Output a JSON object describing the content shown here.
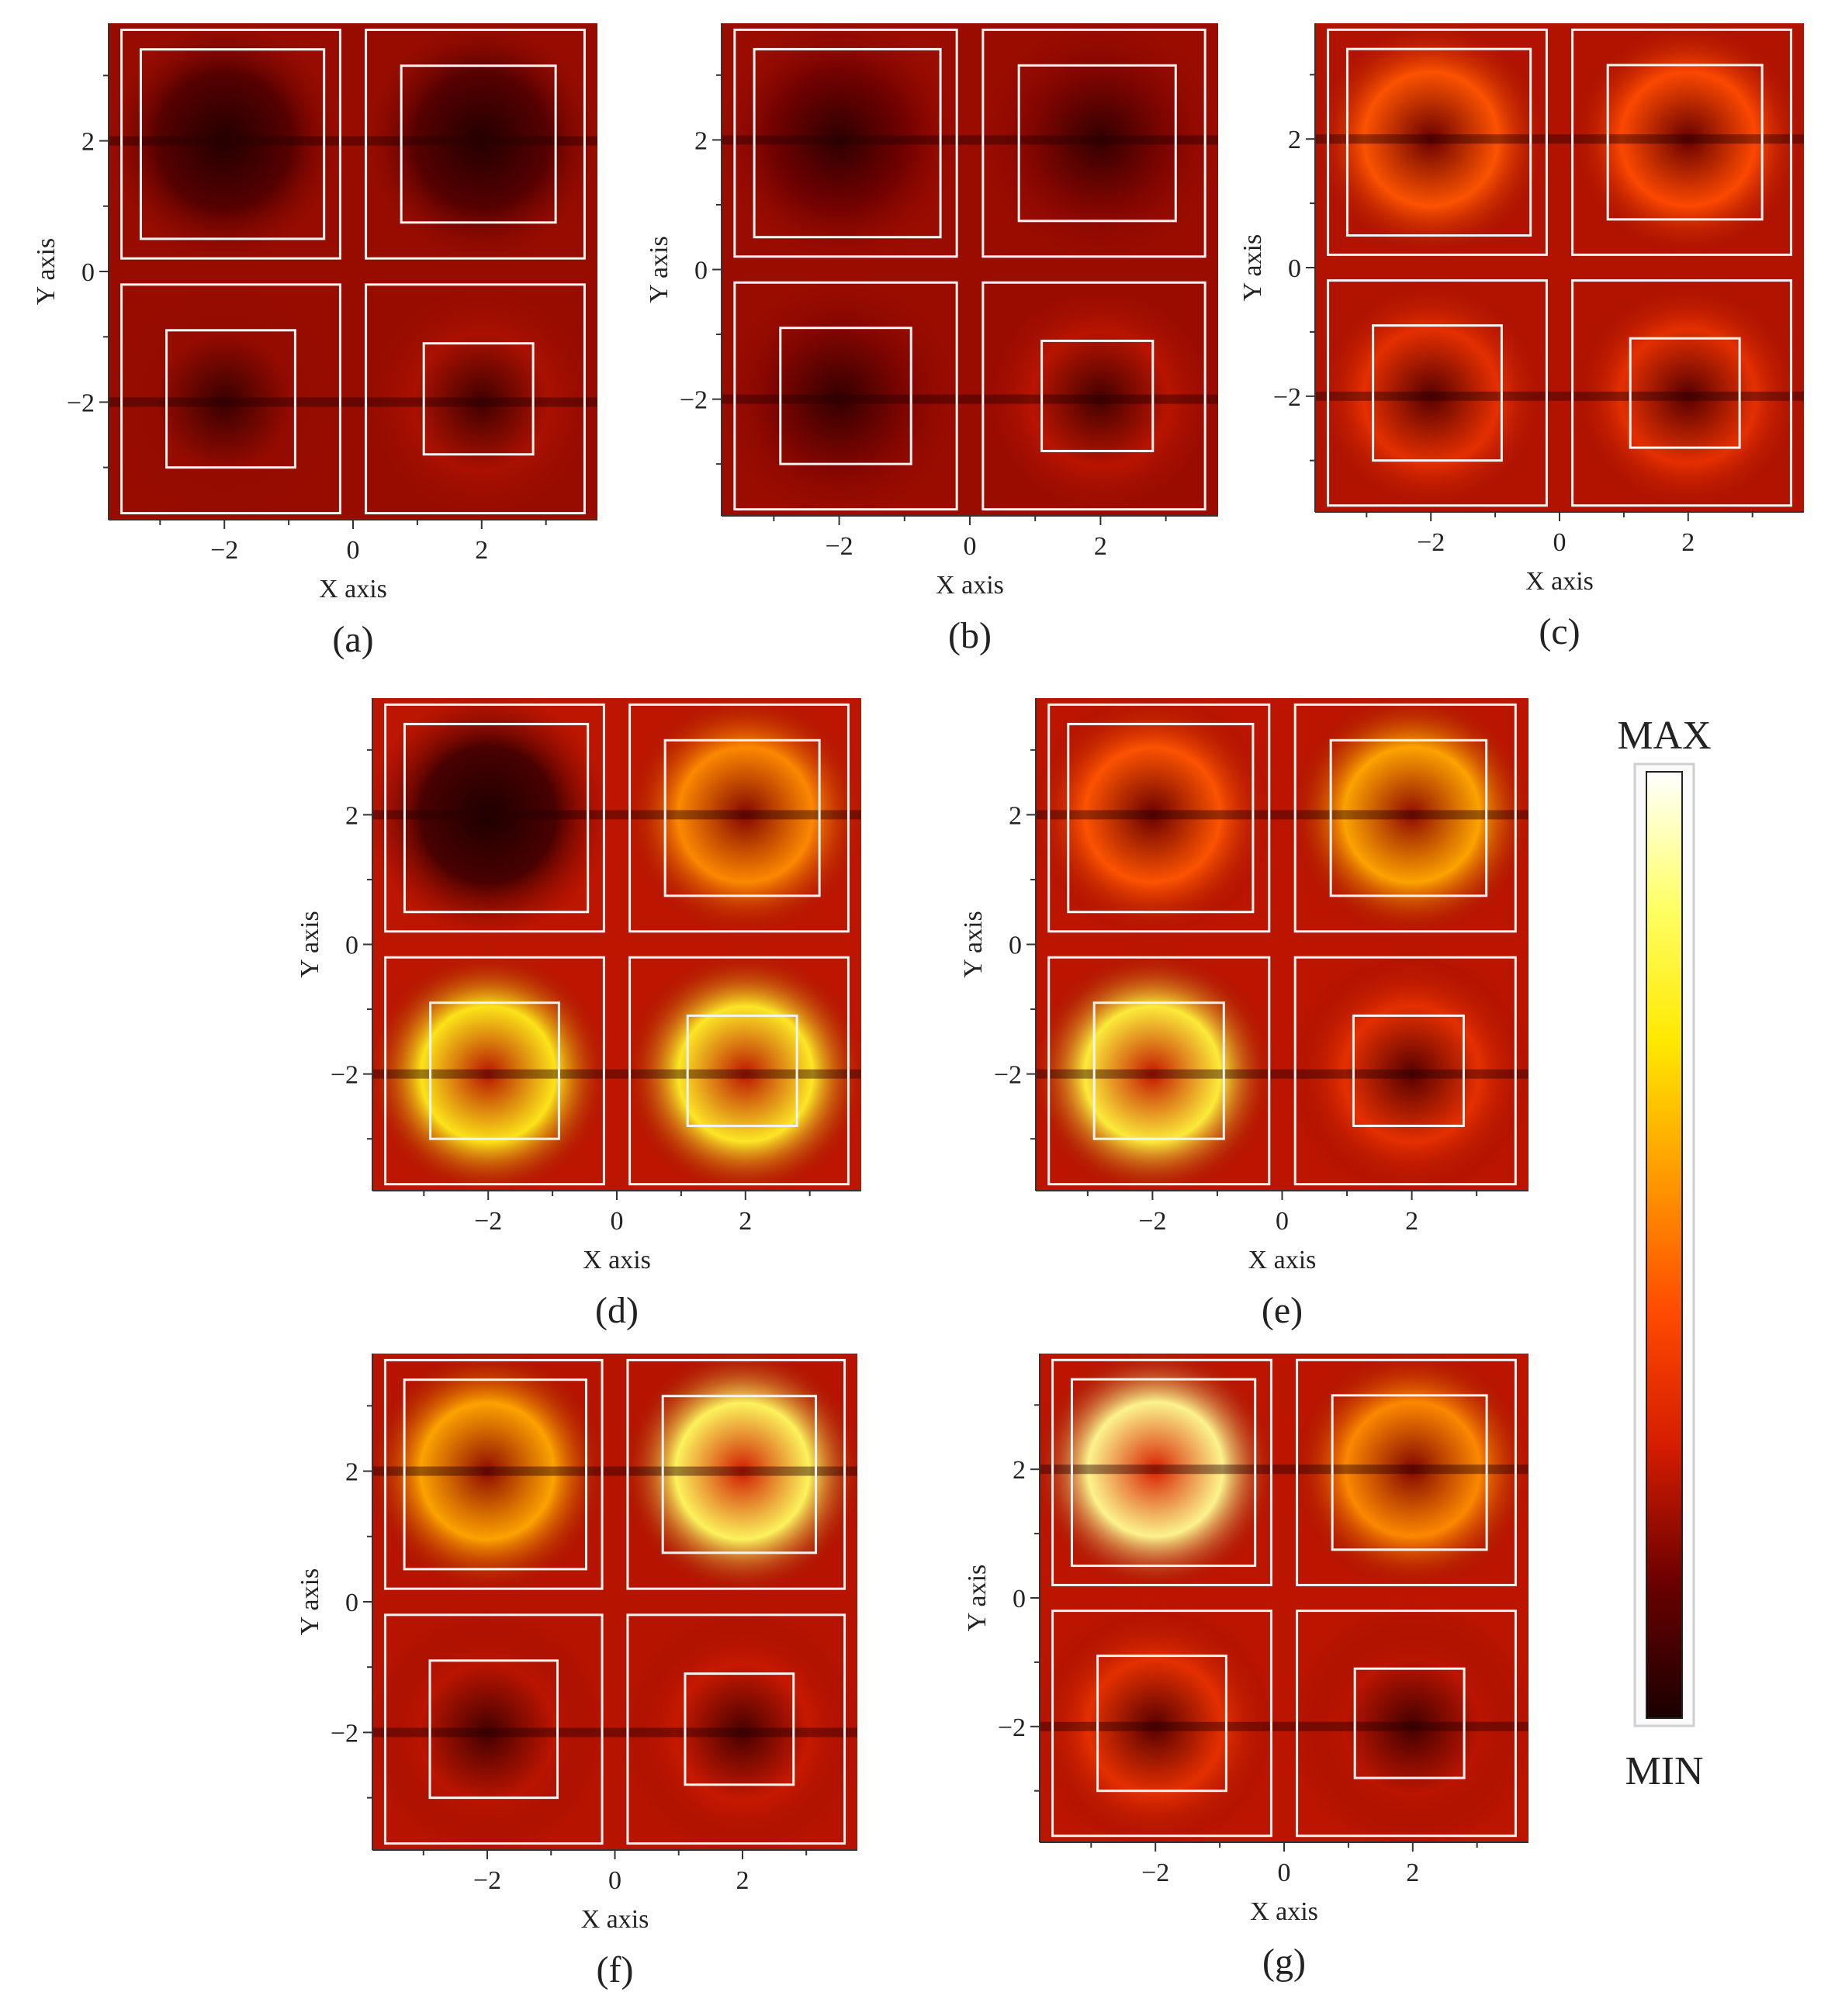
{
  "panels": [
    {
      "id": "a",
      "caption": "(a)",
      "xlabel": "X axis",
      "ylabel": "Y axis",
      "intensity": 0.2
    },
    {
      "id": "b",
      "caption": "(b)",
      "xlabel": "X axis",
      "ylabel": "Y axis",
      "intensity": 0.22
    },
    {
      "id": "c",
      "caption": "(c)",
      "xlabel": "X axis",
      "ylabel": "Y axis",
      "intensity": 0.5
    },
    {
      "id": "d",
      "caption": "(d)",
      "xlabel": "X axis",
      "ylabel": "Y axis",
      "intensity": 0.62
    },
    {
      "id": "e",
      "caption": "(e)",
      "xlabel": "X axis",
      "ylabel": "Y axis",
      "intensity": 0.6
    },
    {
      "id": "f",
      "caption": "(f)",
      "xlabel": "X axis",
      "ylabel": "Y axis",
      "intensity": 0.55
    },
    {
      "id": "g",
      "caption": "(g)",
      "xlabel": "X axis",
      "ylabel": "Y axis",
      "intensity": 0.6
    }
  ],
  "colorbar": {
    "max_label": "MAX",
    "min_label": "MIN",
    "stops": [
      "#1a0000",
      "#6b0000",
      "#d41c00",
      "#ff4a00",
      "#ff9a00",
      "#ffe800",
      "#ffff66",
      "#ffffff"
    ]
  },
  "chart_data": [
    {
      "type": "heatmap",
      "panel": "a",
      "xlim": [
        -3.8,
        3.8
      ],
      "ylim": [
        -3.8,
        3.8
      ],
      "xticks": [
        -2,
        0,
        2
      ],
      "yticks": [
        2,
        0,
        -2
      ],
      "outer_boxes": [
        [
          -3.6,
          0.2,
          -0.2,
          3.7
        ],
        [
          0.2,
          0.2,
          3.6,
          3.7
        ],
        [
          -3.6,
          -3.7,
          -0.2,
          -0.2
        ],
        [
          0.2,
          -3.7,
          3.6,
          -0.2
        ]
      ],
      "inner_boxes": [
        [
          -3.3,
          0.5,
          -0.45,
          3.4
        ],
        [
          0.75,
          0.75,
          3.15,
          3.15
        ],
        [
          -2.9,
          -3.0,
          -0.9,
          -0.9
        ],
        [
          1.1,
          -2.8,
          2.8,
          -1.1
        ]
      ],
      "hotspots": [
        [
          -2.0,
          -2.0,
          0.15
        ],
        [
          2.0,
          -2.0,
          0.18
        ],
        [
          -2.0,
          2.0,
          0.05
        ],
        [
          2.0,
          2.0,
          0.05
        ]
      ]
    },
    {
      "type": "heatmap",
      "panel": "b",
      "xlim": [
        -3.8,
        3.8
      ],
      "ylim": [
        -3.8,
        3.8
      ],
      "xticks": [
        -2,
        0,
        2
      ],
      "yticks": [
        2,
        0,
        -2
      ],
      "outer_boxes": [
        [
          -3.6,
          0.2,
          -0.2,
          3.7
        ],
        [
          0.2,
          0.2,
          3.6,
          3.7
        ],
        [
          -3.6,
          -3.7,
          -0.2,
          -0.2
        ],
        [
          0.2,
          -3.7,
          3.6,
          -0.2
        ]
      ],
      "inner_boxes": [
        [
          -3.3,
          0.5,
          -0.45,
          3.4
        ],
        [
          0.75,
          0.75,
          3.15,
          3.15
        ],
        [
          -2.9,
          -3.0,
          -0.9,
          -0.9
        ],
        [
          1.1,
          -2.8,
          2.8,
          -1.1
        ]
      ],
      "hotspots": [
        [
          -2.0,
          -2.0,
          0.12
        ],
        [
          2.0,
          -2.0,
          0.2
        ],
        [
          -2.0,
          2.0,
          0.1
        ],
        [
          2.0,
          2.0,
          0.12
        ]
      ]
    },
    {
      "type": "heatmap",
      "panel": "c",
      "xlim": [
        -3.8,
        3.8
      ],
      "ylim": [
        -3.8,
        3.8
      ],
      "xticks": [
        -2,
        0,
        2
      ],
      "yticks": [
        2,
        0,
        -2
      ],
      "outer_boxes": [
        [
          -3.6,
          0.2,
          -0.2,
          3.7
        ],
        [
          0.2,
          0.2,
          3.6,
          3.7
        ],
        [
          -3.6,
          -3.7,
          -0.2,
          -0.2
        ],
        [
          0.2,
          -3.7,
          3.6,
          -0.2
        ]
      ],
      "inner_boxes": [
        [
          -3.3,
          0.5,
          -0.45,
          3.4
        ],
        [
          0.75,
          0.75,
          3.15,
          3.15
        ],
        [
          -2.9,
          -3.0,
          -0.9,
          -0.9
        ],
        [
          1.1,
          -2.8,
          2.8,
          -1.1
        ]
      ],
      "hotspots": [
        [
          -2.0,
          -2.0,
          0.3
        ],
        [
          2.0,
          -2.0,
          0.3
        ],
        [
          -2.0,
          2.0,
          0.4
        ],
        [
          2.0,
          2.0,
          0.38
        ]
      ]
    },
    {
      "type": "heatmap",
      "panel": "d",
      "xlim": [
        -3.8,
        3.8
      ],
      "ylim": [
        -3.8,
        3.8
      ],
      "xticks": [
        -2,
        0,
        2
      ],
      "yticks": [
        2,
        0,
        -2
      ],
      "outer_boxes": [
        [
          -3.6,
          0.2,
          -0.2,
          3.7
        ],
        [
          0.2,
          0.2,
          3.6,
          3.7
        ],
        [
          -3.6,
          -3.7,
          -0.2,
          -0.2
        ],
        [
          0.2,
          -3.7,
          3.6,
          -0.2
        ]
      ],
      "inner_boxes": [
        [
          -3.3,
          0.5,
          -0.45,
          3.4
        ],
        [
          0.75,
          0.75,
          3.15,
          3.15
        ],
        [
          -2.9,
          -3.0,
          -0.9,
          -0.9
        ],
        [
          1.1,
          -2.8,
          2.8,
          -1.1
        ]
      ],
      "hotspots": [
        [
          -2.0,
          -2.0,
          0.7
        ],
        [
          2.0,
          -2.0,
          0.72
        ],
        [
          -2.0,
          2.0,
          0.02
        ],
        [
          2.0,
          2.0,
          0.5
        ]
      ]
    },
    {
      "type": "heatmap",
      "panel": "e",
      "xlim": [
        -3.8,
        3.8
      ],
      "ylim": [
        -3.8,
        3.8
      ],
      "xticks": [
        -2,
        0,
        2
      ],
      "yticks": [
        2,
        0,
        -2
      ],
      "outer_boxes": [
        [
          -3.6,
          0.2,
          -0.2,
          3.7
        ],
        [
          0.2,
          0.2,
          3.6,
          3.7
        ],
        [
          -3.6,
          -3.7,
          -0.2,
          -0.2
        ],
        [
          0.2,
          -3.7,
          3.6,
          -0.2
        ]
      ],
      "inner_boxes": [
        [
          -3.3,
          0.5,
          -0.45,
          3.4
        ],
        [
          0.75,
          0.75,
          3.15,
          3.15
        ],
        [
          -2.9,
          -3.0,
          -0.9,
          -0.9
        ],
        [
          1.1,
          -2.8,
          2.8,
          -1.1
        ]
      ],
      "hotspots": [
        [
          -2.0,
          -2.0,
          0.75
        ],
        [
          2.0,
          -2.0,
          0.3
        ],
        [
          -2.0,
          2.0,
          0.4
        ],
        [
          2.0,
          2.0,
          0.55
        ]
      ]
    },
    {
      "type": "heatmap",
      "panel": "f",
      "xlim": [
        -3.8,
        3.8
      ],
      "ylim": [
        -3.8,
        3.8
      ],
      "xticks": [
        -2,
        0,
        2
      ],
      "yticks": [
        2,
        0,
        -2
      ],
      "outer_boxes": [
        [
          -3.6,
          0.2,
          -0.2,
          3.7
        ],
        [
          0.2,
          0.2,
          3.6,
          3.7
        ],
        [
          -3.6,
          -3.7,
          -0.2,
          -0.2
        ],
        [
          0.2,
          -3.7,
          3.6,
          -0.2
        ]
      ],
      "inner_boxes": [
        [
          -3.3,
          0.5,
          -0.45,
          3.4
        ],
        [
          0.75,
          0.75,
          3.15,
          3.15
        ],
        [
          -2.9,
          -3.0,
          -0.9,
          -0.9
        ],
        [
          1.1,
          -2.8,
          2.8,
          -1.1
        ]
      ],
      "hotspots": [
        [
          -2.0,
          -2.0,
          0.2
        ],
        [
          2.0,
          -2.0,
          0.22
        ],
        [
          -2.0,
          2.0,
          0.55
        ],
        [
          2.0,
          2.0,
          0.8
        ]
      ]
    },
    {
      "type": "heatmap",
      "panel": "g",
      "xlim": [
        -3.8,
        3.8
      ],
      "ylim": [
        -3.8,
        3.8
      ],
      "xticks": [
        -2,
        0,
        2
      ],
      "yticks": [
        2,
        0,
        -2
      ],
      "outer_boxes": [
        [
          -3.6,
          0.2,
          -0.2,
          3.7
        ],
        [
          0.2,
          0.2,
          3.6,
          3.7
        ],
        [
          -3.6,
          -3.7,
          -0.2,
          -0.2
        ],
        [
          0.2,
          -3.7,
          3.6,
          -0.2
        ]
      ],
      "inner_boxes": [
        [
          -3.3,
          0.5,
          -0.45,
          3.4
        ],
        [
          0.75,
          0.75,
          3.15,
          3.15
        ],
        [
          -2.9,
          -3.0,
          -0.9,
          -0.9
        ],
        [
          1.1,
          -2.8,
          2.8,
          -1.1
        ]
      ],
      "hotspots": [
        [
          -2.0,
          -2.0,
          0.3
        ],
        [
          2.0,
          -2.0,
          0.2
        ],
        [
          -2.0,
          2.0,
          0.85
        ],
        [
          2.0,
          2.0,
          0.5
        ]
      ]
    }
  ]
}
